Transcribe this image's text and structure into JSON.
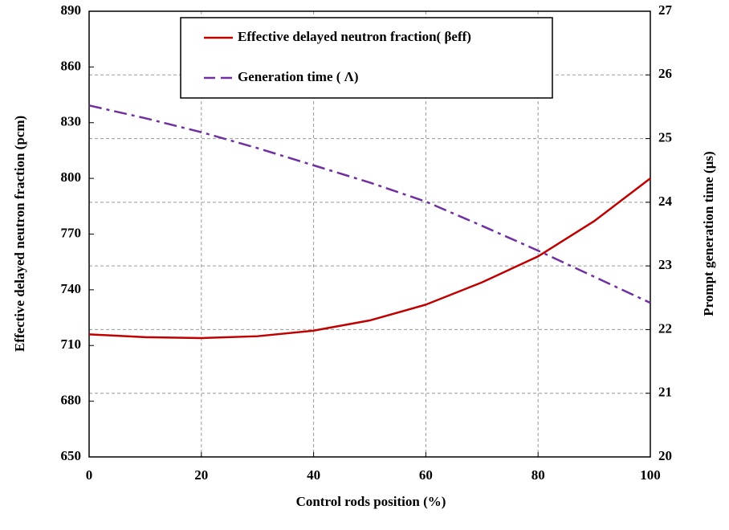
{
  "chart_data": {
    "type": "line",
    "x_label": "Control rods position (%)",
    "y_label": "Effective delayed neutron fraction (pcm)",
    "y2_label": "Prompt generation time (µs)",
    "x": [
      0,
      10,
      20,
      30,
      40,
      50,
      60,
      70,
      80,
      90,
      100
    ],
    "series": [
      {
        "name": "Effective delayed neutron fraction( βeff)",
        "color": "#c00000",
        "axis": "y",
        "values": [
          716,
          714.5,
          714,
          715,
          718,
          723.5,
          732,
          744,
          758,
          777,
          800
        ]
      },
      {
        "name": "Generation time ( Λ)",
        "color": "#7030a0",
        "axis": "y2",
        "values": [
          25.52,
          25.32,
          25.1,
          24.85,
          24.58,
          24.31,
          24.01,
          23.63,
          23.24,
          22.83,
          22.42
        ]
      }
    ],
    "xlim": [
      0,
      100
    ],
    "xticks": [
      0,
      20,
      40,
      60,
      80,
      100
    ],
    "ylim": [
      650,
      890
    ],
    "yticks": [
      650,
      680,
      710,
      740,
      770,
      800,
      830,
      860,
      890
    ],
    "y2lim": [
      20,
      27
    ],
    "y2ticks": [
      20,
      21,
      22,
      23,
      24,
      25,
      26,
      27
    ],
    "grid": true
  }
}
